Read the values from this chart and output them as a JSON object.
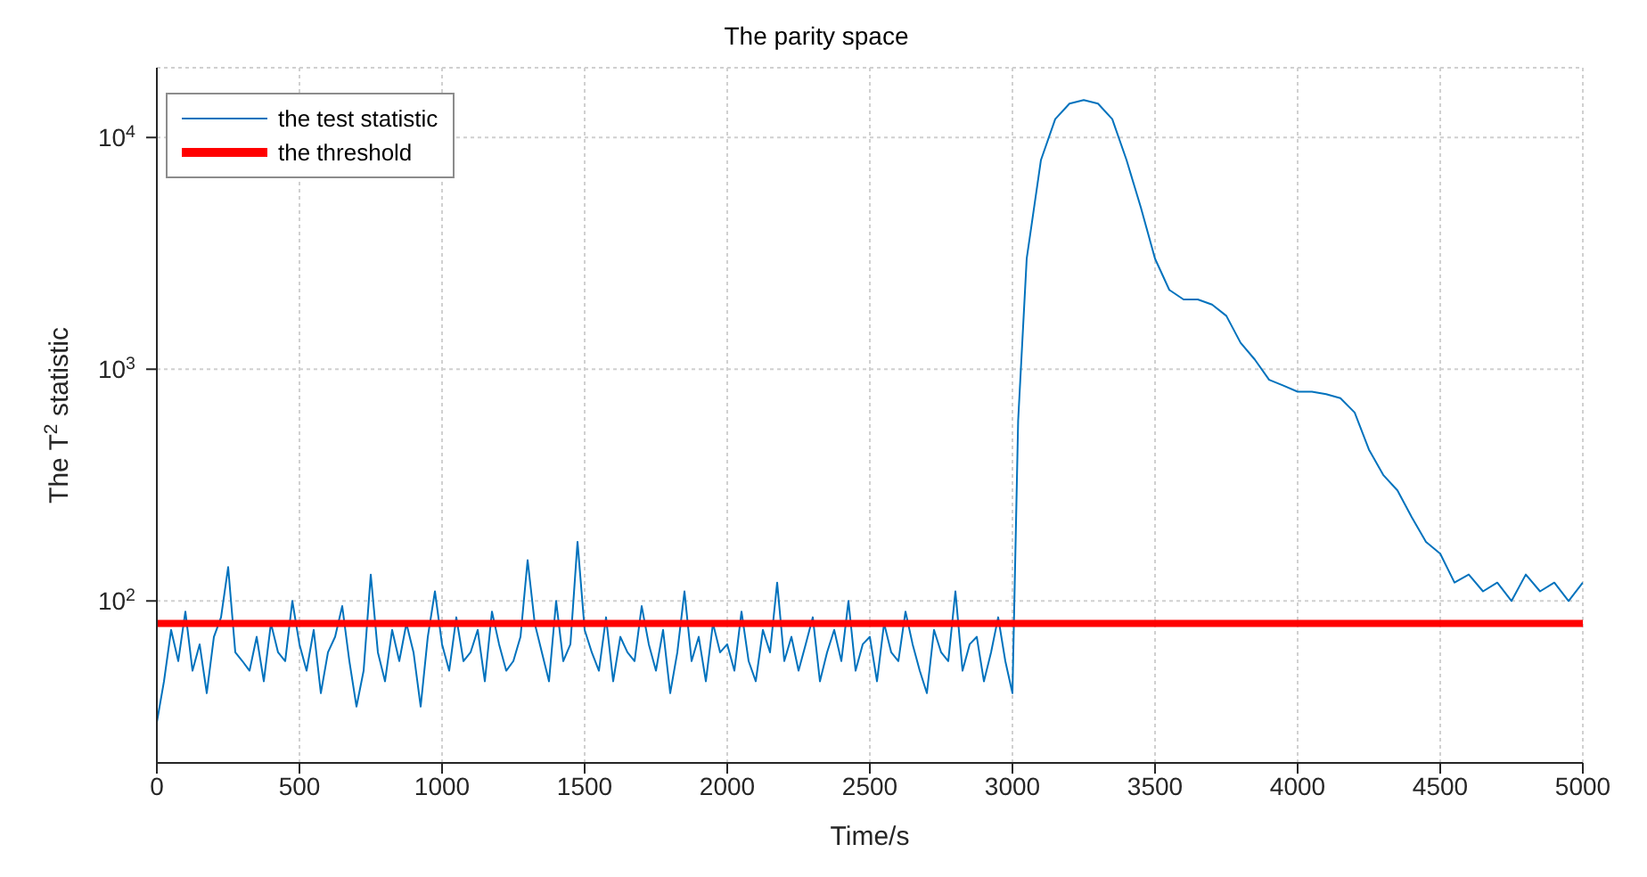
{
  "chart_data": {
    "type": "line",
    "title": "The parity space",
    "xlabel": "Time/s",
    "ylabel": "The T$^{2}$ statistic",
    "x": [
      0,
      25,
      50,
      75,
      100,
      125,
      150,
      175,
      200,
      225,
      250,
      275,
      300,
      325,
      350,
      375,
      400,
      425,
      450,
      475,
      500,
      525,
      550,
      575,
      600,
      625,
      650,
      675,
      700,
      725,
      750,
      775,
      800,
      825,
      850,
      875,
      900,
      925,
      950,
      975,
      1000,
      1025,
      1050,
      1075,
      1100,
      1125,
      1150,
      1175,
      1200,
      1225,
      1250,
      1275,
      1300,
      1325,
      1350,
      1375,
      1400,
      1425,
      1450,
      1475,
      1500,
      1525,
      1550,
      1575,
      1600,
      1625,
      1650,
      1675,
      1700,
      1725,
      1750,
      1775,
      1800,
      1825,
      1850,
      1875,
      1900,
      1925,
      1950,
      1975,
      2000,
      2025,
      2050,
      2075,
      2100,
      2125,
      2150,
      2175,
      2200,
      2225,
      2250,
      2275,
      2300,
      2325,
      2350,
      2375,
      2400,
      2425,
      2450,
      2475,
      2500,
      2525,
      2550,
      2575,
      2600,
      2625,
      2650,
      2675,
      2700,
      2725,
      2750,
      2775,
      2800,
      2825,
      2850,
      2875,
      2900,
      2925,
      2950,
      2975,
      3000,
      3020,
      3050,
      3100,
      3150,
      3200,
      3250,
      3300,
      3350,
      3400,
      3450,
      3500,
      3550,
      3600,
      3650,
      3700,
      3750,
      3800,
      3850,
      3900,
      3950,
      4000,
      4050,
      4100,
      4150,
      4200,
      4250,
      4300,
      4350,
      4400,
      4450,
      4500,
      4550,
      4600,
      4650,
      4700,
      4750,
      4800,
      4850,
      4900,
      4950,
      5000
    ],
    "series": [
      {
        "name": "the test statistic",
        "color": "#0072bd",
        "values": [
          30,
          45,
          75,
          55,
          90,
          50,
          65,
          40,
          70,
          85,
          140,
          60,
          55,
          50,
          70,
          45,
          80,
          60,
          55,
          100,
          65,
          50,
          75,
          40,
          60,
          70,
          95,
          55,
          35,
          50,
          130,
          60,
          45,
          75,
          55,
          80,
          60,
          35,
          70,
          110,
          65,
          50,
          85,
          55,
          60,
          75,
          45,
          90,
          65,
          50,
          55,
          70,
          150,
          80,
          60,
          45,
          100,
          55,
          65,
          180,
          75,
          60,
          50,
          85,
          45,
          70,
          60,
          55,
          95,
          65,
          50,
          75,
          40,
          60,
          110,
          55,
          70,
          45,
          80,
          60,
          65,
          50,
          90,
          55,
          45,
          75,
          60,
          120,
          55,
          70,
          50,
          65,
          85,
          45,
          60,
          75,
          55,
          100,
          50,
          65,
          70,
          45,
          80,
          60,
          55,
          90,
          65,
          50,
          40,
          75,
          60,
          55,
          110,
          50,
          65,
          70,
          45,
          60,
          85,
          55,
          40,
          600,
          3000,
          8000,
          12000,
          14000,
          14500,
          14000,
          12000,
          8000,
          5000,
          3000,
          2200,
          2000,
          2000,
          1900,
          1700,
          1300,
          1100,
          900,
          850,
          800,
          800,
          780,
          750,
          650,
          450,
          350,
          300,
          230,
          180,
          160,
          120,
          130,
          110,
          120,
          100,
          130,
          110,
          120,
          100,
          120
        ]
      }
    ],
    "ref_lines": [
      {
        "axis": "y",
        "value": 80,
        "label": "the threshold",
        "color": "#ff0000"
      }
    ],
    "xlim": [
      0,
      5000
    ],
    "xticks": [
      0,
      500,
      1000,
      1500,
      2000,
      2500,
      3000,
      3500,
      4000,
      4500,
      5000
    ],
    "ylim": [
      20,
      20000
    ],
    "yticks": [
      {
        "value": 100,
        "label": "10$^{2}$"
      },
      {
        "value": 1000,
        "label": "10$^{3}$"
      },
      {
        "value": 10000,
        "label": "10$^{4}$"
      }
    ],
    "log": "y",
    "grid": true,
    "legend": "top left",
    "marker": "none",
    "line_style": "solid"
  }
}
